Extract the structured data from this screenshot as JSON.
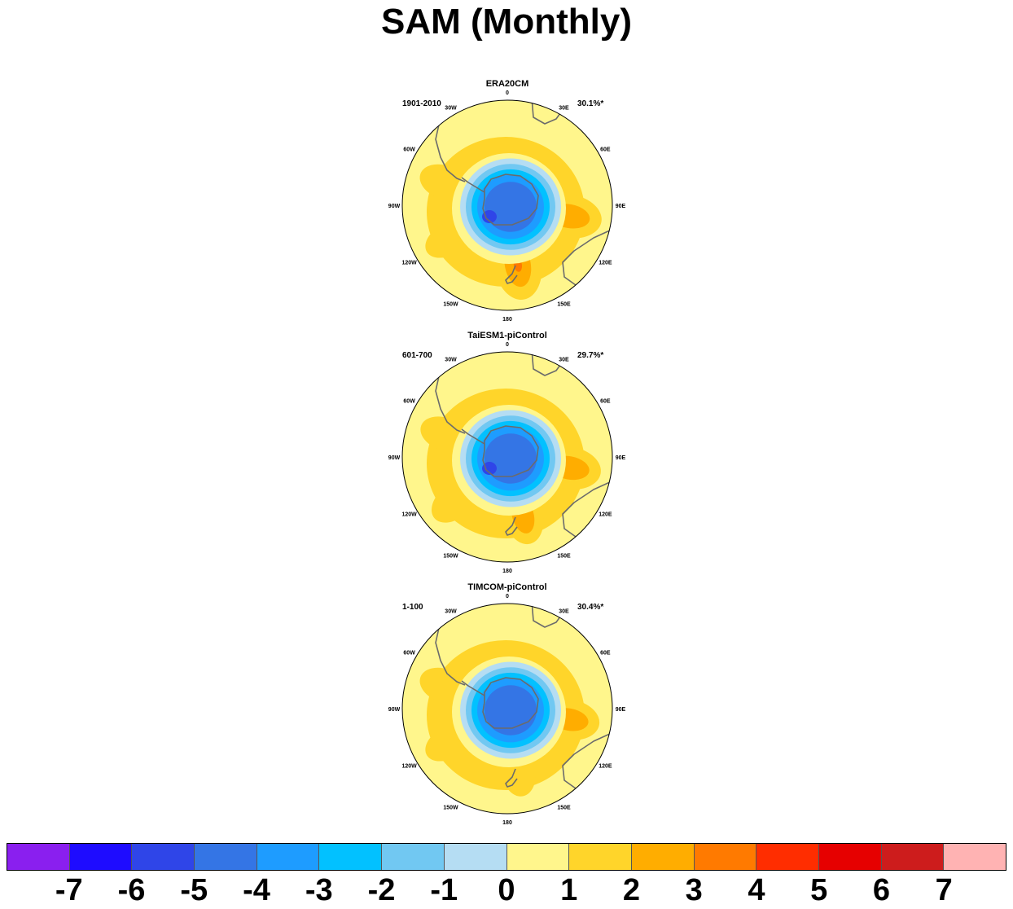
{
  "title": "SAM (Monthly)",
  "panels": [
    {
      "name": "ERA20CM",
      "period": "1901-2010",
      "variance": "30.1%*",
      "lobes": [
        {
          "lon": 100,
          "lat": -45,
          "value": 2.6
        },
        {
          "lon": 170,
          "lat": -47,
          "value": 3.0
        },
        {
          "lon": -70,
          "lat": -42,
          "value": 1.6
        },
        {
          "lon": -120,
          "lat": -40,
          "value": 1.3
        }
      ],
      "polar_min": -5.8
    },
    {
      "name": "TaiESM1-piControl",
      "period": "601-700",
      "variance": "29.7%*",
      "lobes": [
        {
          "lon": 100,
          "lat": -45,
          "value": 2.5
        },
        {
          "lon": 165,
          "lat": -47,
          "value": 2.2
        },
        {
          "lon": -70,
          "lat": -42,
          "value": 1.5
        },
        {
          "lon": -130,
          "lat": -40,
          "value": 1.6
        }
      ],
      "polar_min": -5.5
    },
    {
      "name": "TIMCOM-piControl",
      "period": "1-100",
      "variance": "30.4%*",
      "lobes": [
        {
          "lon": 100,
          "lat": -45,
          "value": 2.3
        },
        {
          "lon": 170,
          "lat": -45,
          "value": 1.7
        },
        {
          "lon": -70,
          "lat": -42,
          "value": 1.6
        },
        {
          "lon": -120,
          "lat": -40,
          "value": 1.3
        }
      ],
      "polar_min": -5.4
    }
  ],
  "lon_labels": [
    "0",
    "30E",
    "60E",
    "90E",
    "120E",
    "150E",
    "180",
    "150W",
    "120W",
    "90W",
    "60W",
    "30W"
  ],
  "colorbar": {
    "colors": [
      "#8a1fef",
      "#1e0cff",
      "#2f45e8",
      "#3475e5",
      "#1e9cff",
      "#02c1ff",
      "#71c8f2",
      "#b5ddf3",
      "#fff68c",
      "#ffd52a",
      "#ffad00",
      "#ff7a00",
      "#ff2d00",
      "#e60000",
      "#cd1c1c",
      "#ffb3b3"
    ],
    "labels": [
      "-7",
      "-6",
      "-5",
      "-4",
      "-3",
      "-2",
      "-1",
      "0",
      "1",
      "2",
      "3",
      "4",
      "5",
      "6",
      "7"
    ]
  }
}
